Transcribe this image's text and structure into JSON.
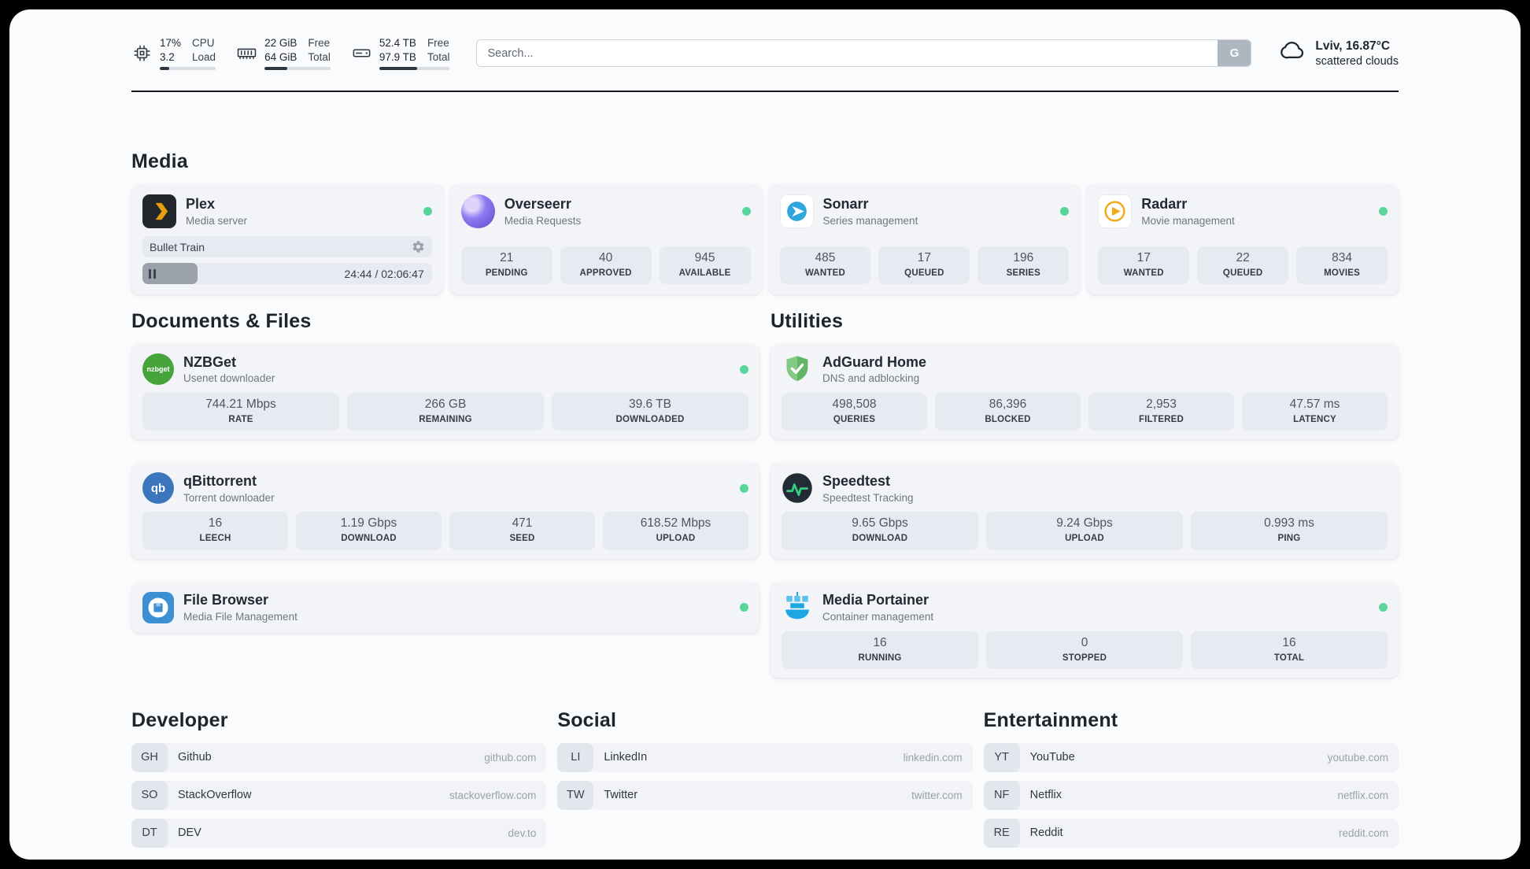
{
  "colors": {
    "status_online": "#58d59b",
    "topbar_fill": "#2e3640",
    "plex": "#e5a00d",
    "overseerr": "#7c6cf0",
    "sonarr": "#2fa7dd",
    "radarr": "#f2a91c",
    "nzbget": "#47a33c",
    "qbittorrent": "#3b76bc",
    "filebrowser": "#3d8fd4",
    "adguard": "#63b368",
    "speedtest_line": "#35d07f",
    "portainer": "#1ba8e0"
  },
  "topbar": {
    "cpu": {
      "value_top": "17%",
      "value_bottom": "3.2",
      "label_top": "CPU",
      "label_bottom": "Load",
      "bar_percent": 17
    },
    "memory": {
      "value_top": "22 GiB",
      "value_bottom": "64 GiB",
      "label_top": "Free",
      "label_bottom": "Total",
      "bar_percent": 34
    },
    "disk": {
      "value_top": "52.4 TB",
      "value_bottom": "97.9 TB",
      "label_top": "Free",
      "label_bottom": "Total",
      "bar_percent": 54
    },
    "search": {
      "placeholder": "Search...",
      "provider_button": "G"
    },
    "weather": {
      "location": "Lviv, 16.87°C",
      "condition": "scattered clouds"
    }
  },
  "sections": {
    "media": "Media",
    "documents": "Documents & Files",
    "utilities": "Utilities",
    "developer": "Developer",
    "social": "Social",
    "entertainment": "Entertainment"
  },
  "services": {
    "plex": {
      "name": "Plex",
      "description": "Media server",
      "now_playing": {
        "title": "Bullet Train",
        "time": "24:44 / 02:06:47",
        "progress_percent": 19
      }
    },
    "overseerr": {
      "name": "Overseerr",
      "description": "Media Requests",
      "stats": [
        {
          "value": "21",
          "label": "PENDING"
        },
        {
          "value": "40",
          "label": "APPROVED"
        },
        {
          "value": "945",
          "label": "AVAILABLE"
        }
      ]
    },
    "sonarr": {
      "name": "Sonarr",
      "description": "Series management",
      "stats": [
        {
          "value": "485",
          "label": "WANTED"
        },
        {
          "value": "17",
          "label": "QUEUED"
        },
        {
          "value": "196",
          "label": "SERIES"
        }
      ]
    },
    "radarr": {
      "name": "Radarr",
      "description": "Movie management",
      "stats": [
        {
          "value": "17",
          "label": "WANTED"
        },
        {
          "value": "22",
          "label": "QUEUED"
        },
        {
          "value": "834",
          "label": "MOVIES"
        }
      ]
    },
    "nzbget": {
      "name": "NZBGet",
      "description": "Usenet downloader",
      "icon_text": "nzbget",
      "stats": [
        {
          "value": "744.21 Mbps",
          "label": "RATE"
        },
        {
          "value": "266 GB",
          "label": "REMAINING"
        },
        {
          "value": "39.6 TB",
          "label": "DOWNLOADED"
        }
      ]
    },
    "qbittorrent": {
      "name": "qBittorrent",
      "description": "Torrent downloader",
      "icon_text": "qb",
      "stats": [
        {
          "value": "16",
          "label": "LEECH"
        },
        {
          "value": "1.19 Gbps",
          "label": "DOWNLOAD"
        },
        {
          "value": "471",
          "label": "SEED"
        },
        {
          "value": "618.52 Mbps",
          "label": "UPLOAD"
        }
      ]
    },
    "filebrowser": {
      "name": "File Browser",
      "description": "Media File Management"
    },
    "adguard": {
      "name": "AdGuard Home",
      "description": "DNS and adblocking",
      "stats": [
        {
          "value": "498,508",
          "label": "QUERIES"
        },
        {
          "value": "86,396",
          "label": "BLOCKED"
        },
        {
          "value": "2,953",
          "label": "FILTERED"
        },
        {
          "value": "47.57 ms",
          "label": "LATENCY"
        }
      ]
    },
    "speedtest": {
      "name": "Speedtest",
      "description": "Speedtest Tracking",
      "stats": [
        {
          "value": "9.65 Gbps",
          "label": "DOWNLOAD"
        },
        {
          "value": "9.24 Gbps",
          "label": "UPLOAD"
        },
        {
          "value": "0.993 ms",
          "label": "PING"
        }
      ]
    },
    "portainer": {
      "name": "Media Portainer",
      "description": "Container management",
      "stats": [
        {
          "value": "16",
          "label": "RUNNING"
        },
        {
          "value": "0",
          "label": "STOPPED"
        },
        {
          "value": "16",
          "label": "TOTAL"
        }
      ]
    }
  },
  "bookmarks": {
    "developer": [
      {
        "abbr": "GH",
        "name": "Github",
        "href": "github.com"
      },
      {
        "abbr": "SO",
        "name": "StackOverflow",
        "href": "stackoverflow.com"
      },
      {
        "abbr": "DT",
        "name": "DEV",
        "href": "dev.to"
      }
    ],
    "social": [
      {
        "abbr": "LI",
        "name": "LinkedIn",
        "href": "linkedin.com"
      },
      {
        "abbr": "TW",
        "name": "Twitter",
        "href": "twitter.com"
      }
    ],
    "entertainment": [
      {
        "abbr": "YT",
        "name": "YouTube",
        "href": "youtube.com"
      },
      {
        "abbr": "NF",
        "name": "Netflix",
        "href": "netflix.com"
      },
      {
        "abbr": "RE",
        "name": "Reddit",
        "href": "reddit.com"
      }
    ]
  }
}
